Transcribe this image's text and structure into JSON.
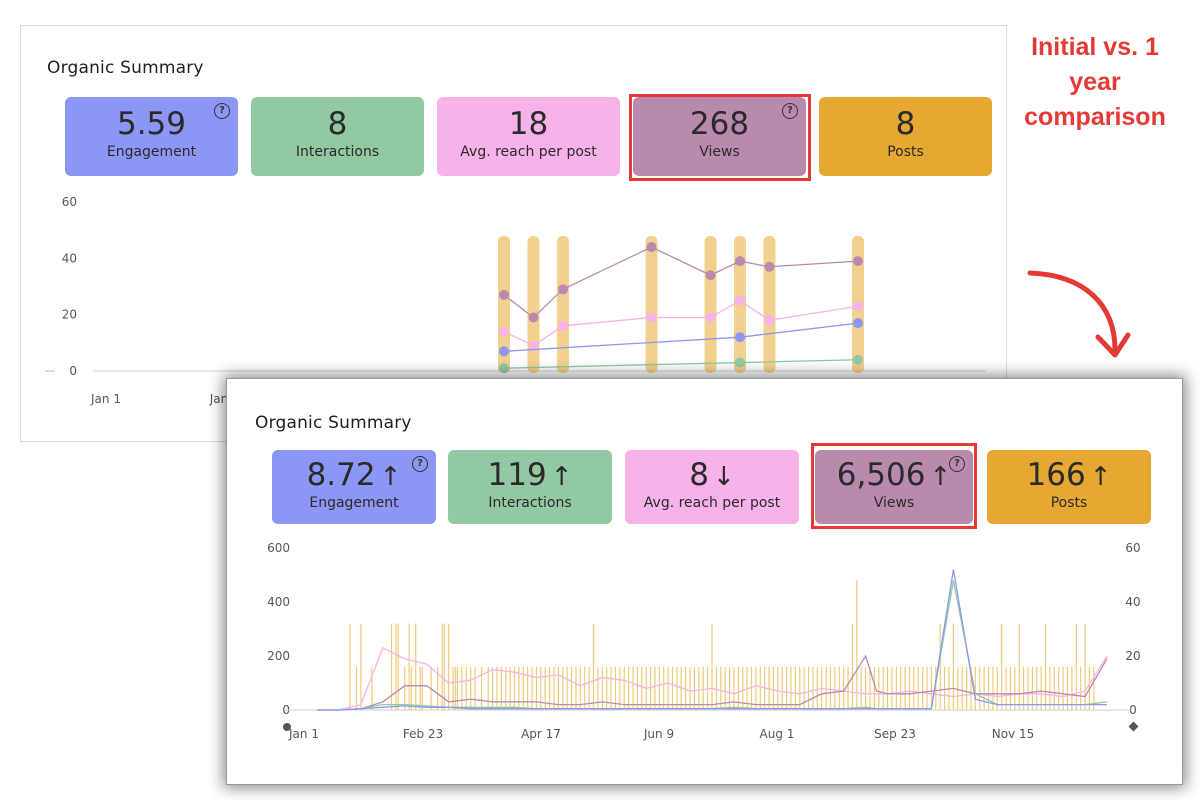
{
  "annotation": "Initial vs. 1 year comparison",
  "colors": {
    "engagement": "#8c96f4",
    "interactions": "#93c9a2",
    "reach": "#f7b2e9",
    "views": "#b98aae",
    "posts": "#e6a832",
    "highlight": "#e53935",
    "post_bar": "#f0c97a"
  },
  "initial": {
    "title": "Organic Summary",
    "metrics": [
      {
        "label": "Engagement",
        "value": "5.59",
        "help": "?"
      },
      {
        "label": "Interactions",
        "value": "8"
      },
      {
        "label": "Avg. reach per post",
        "value": "18"
      },
      {
        "label": "Views",
        "value": "268",
        "help": "?"
      },
      {
        "label": "Posts",
        "value": "8"
      }
    ]
  },
  "year": {
    "title": "Organic Summary",
    "metrics": [
      {
        "label": "Engagement",
        "value": "8.72",
        "arrow": "↑",
        "help": "?"
      },
      {
        "label": "Interactions",
        "value": "119",
        "arrow": "↑"
      },
      {
        "label": "Avg. reach per post",
        "value": "8",
        "arrow": "↓"
      },
      {
        "label": "Views",
        "value": "6,506",
        "arrow": "↑",
        "help": "?"
      },
      {
        "label": "Posts",
        "value": "166",
        "arrow": "↑"
      }
    ]
  },
  "chart_data": [
    {
      "type": "line",
      "title": "Organic Summary (initial)",
      "ylim": [
        0,
        60
      ],
      "y_ticks": [
        "60",
        "40",
        "20",
        "0"
      ],
      "x_tick_labels": [
        "Jan 1",
        "Jan"
      ],
      "x": [
        0,
        1,
        2,
        5,
        7,
        8,
        9,
        12
      ],
      "xlim": [
        0,
        12
      ],
      "posts_bars": [
        0,
        1,
        2,
        5,
        7,
        8,
        9,
        12
      ],
      "series": [
        {
          "name": "Views",
          "values": [
            27,
            19,
            29,
            44,
            34,
            39,
            37,
            39
          ]
        },
        {
          "name": "Avg. reach per post",
          "values": [
            14,
            9,
            16,
            19,
            19,
            25,
            18,
            23
          ]
        },
        {
          "name": "Engagement",
          "values": [
            7,
            null,
            null,
            null,
            null,
            12,
            null,
            17
          ]
        },
        {
          "name": "Interactions",
          "values": [
            1,
            null,
            null,
            null,
            null,
            3,
            null,
            4
          ]
        }
      ]
    },
    {
      "type": "line",
      "title": "Organic Summary (1 year)",
      "ylim": [
        0,
        600
      ],
      "y2lim": [
        0,
        60
      ],
      "y_ticks": [
        "600",
        "400",
        "200",
        "0"
      ],
      "y2_ticks": [
        "60",
        "40",
        "20",
        "0"
      ],
      "x_tick_labels": [
        "Jan 1",
        "Feb 23",
        "Apr 17",
        "Jun 9",
        "Aug 1",
        "Sep 23",
        "Nov 15"
      ],
      "days": [
        0,
        10,
        20,
        30,
        40,
        50,
        60,
        70,
        80,
        90,
        100,
        110,
        120,
        130,
        140,
        150,
        160,
        170,
        180,
        190,
        200,
        210,
        220,
        230,
        240,
        250,
        255,
        260,
        270,
        280,
        290,
        300,
        310,
        320,
        330,
        340,
        350,
        360
      ],
      "xlim": [
        0,
        360
      ],
      "series": [
        {
          "name": "Avg. reach per post",
          "values": [
            0,
            0,
            20,
            230,
            190,
            170,
            100,
            110,
            150,
            140,
            120,
            130,
            90,
            120,
            110,
            80,
            100,
            70,
            80,
            60,
            90,
            70,
            60,
            80,
            70,
            60,
            60,
            60,
            70,
            60,
            50,
            60,
            50,
            60,
            60,
            50,
            70,
            200
          ]
        },
        {
          "name": "Views",
          "values": [
            0,
            0,
            5,
            30,
            90,
            90,
            30,
            40,
            30,
            30,
            30,
            20,
            20,
            30,
            20,
            20,
            20,
            20,
            20,
            30,
            20,
            20,
            20,
            60,
            70,
            200,
            70,
            60,
            60,
            70,
            80,
            60,
            60,
            60,
            70,
            60,
            50,
            190
          ]
        },
        {
          "name": "Interactions",
          "values": [
            0,
            0,
            5,
            20,
            20,
            15,
            10,
            10,
            10,
            10,
            5,
            5,
            5,
            5,
            5,
            5,
            5,
            5,
            5,
            10,
            5,
            5,
            5,
            5,
            5,
            10,
            5,
            5,
            5,
            5,
            480,
            60,
            20,
            20,
            20,
            20,
            20,
            30
          ]
        },
        {
          "name": "Engagement",
          "values": [
            0,
            0,
            5,
            10,
            15,
            10,
            10,
            5,
            5,
            5,
            5,
            5,
            5,
            5,
            5,
            5,
            5,
            5,
            5,
            5,
            5,
            5,
            5,
            5,
            5,
            5,
            5,
            5,
            5,
            5,
            520,
            40,
            20,
            20,
            20,
            20,
            20,
            20
          ]
        }
      ],
      "posts_bars": [
        15,
        18,
        20,
        25,
        34,
        36,
        37,
        40,
        42,
        43,
        45,
        47,
        48,
        52,
        55,
        57,
        58,
        60,
        62,
        63,
        64,
        66,
        68,
        70,
        72,
        75,
        78,
        80,
        82,
        84,
        86,
        88,
        90,
        92,
        94,
        96,
        98,
        100,
        102,
        104,
        106,
        108,
        110,
        112,
        114,
        116,
        118,
        120,
        122,
        124,
        126,
        128,
        130,
        132,
        134,
        136,
        138,
        140,
        142,
        144,
        146,
        148,
        150,
        152,
        154,
        156,
        158,
        160,
        162,
        164,
        166,
        168,
        170,
        172,
        174,
        176,
        178,
        180,
        182,
        184,
        186,
        188,
        190,
        192,
        194,
        196,
        198,
        200,
        202,
        204,
        206,
        208,
        210,
        212,
        214,
        216,
        218,
        220,
        222,
        224,
        226,
        228,
        230,
        232,
        234,
        236,
        238,
        240,
        242,
        244,
        246,
        248,
        250,
        252,
        254,
        256,
        258,
        260,
        262,
        264,
        266,
        268,
        270,
        272,
        274,
        276,
        278,
        280,
        282,
        284,
        286,
        288,
        290,
        292,
        294,
        296,
        298,
        300,
        302,
        304,
        306,
        308,
        310,
        312,
        314,
        316,
        318,
        320,
        322,
        324,
        326,
        328,
        330,
        332,
        334,
        336,
        338,
        340,
        342,
        344,
        346,
        348,
        350,
        352,
        354
      ],
      "posts_tall": [
        15,
        20,
        34,
        36,
        37,
        42,
        45,
        57,
        58,
        60,
        126,
        180,
        244,
        284,
        290,
        312,
        320,
        332,
        346,
        350
      ],
      "posts_peak": [
        246
      ]
    }
  ]
}
